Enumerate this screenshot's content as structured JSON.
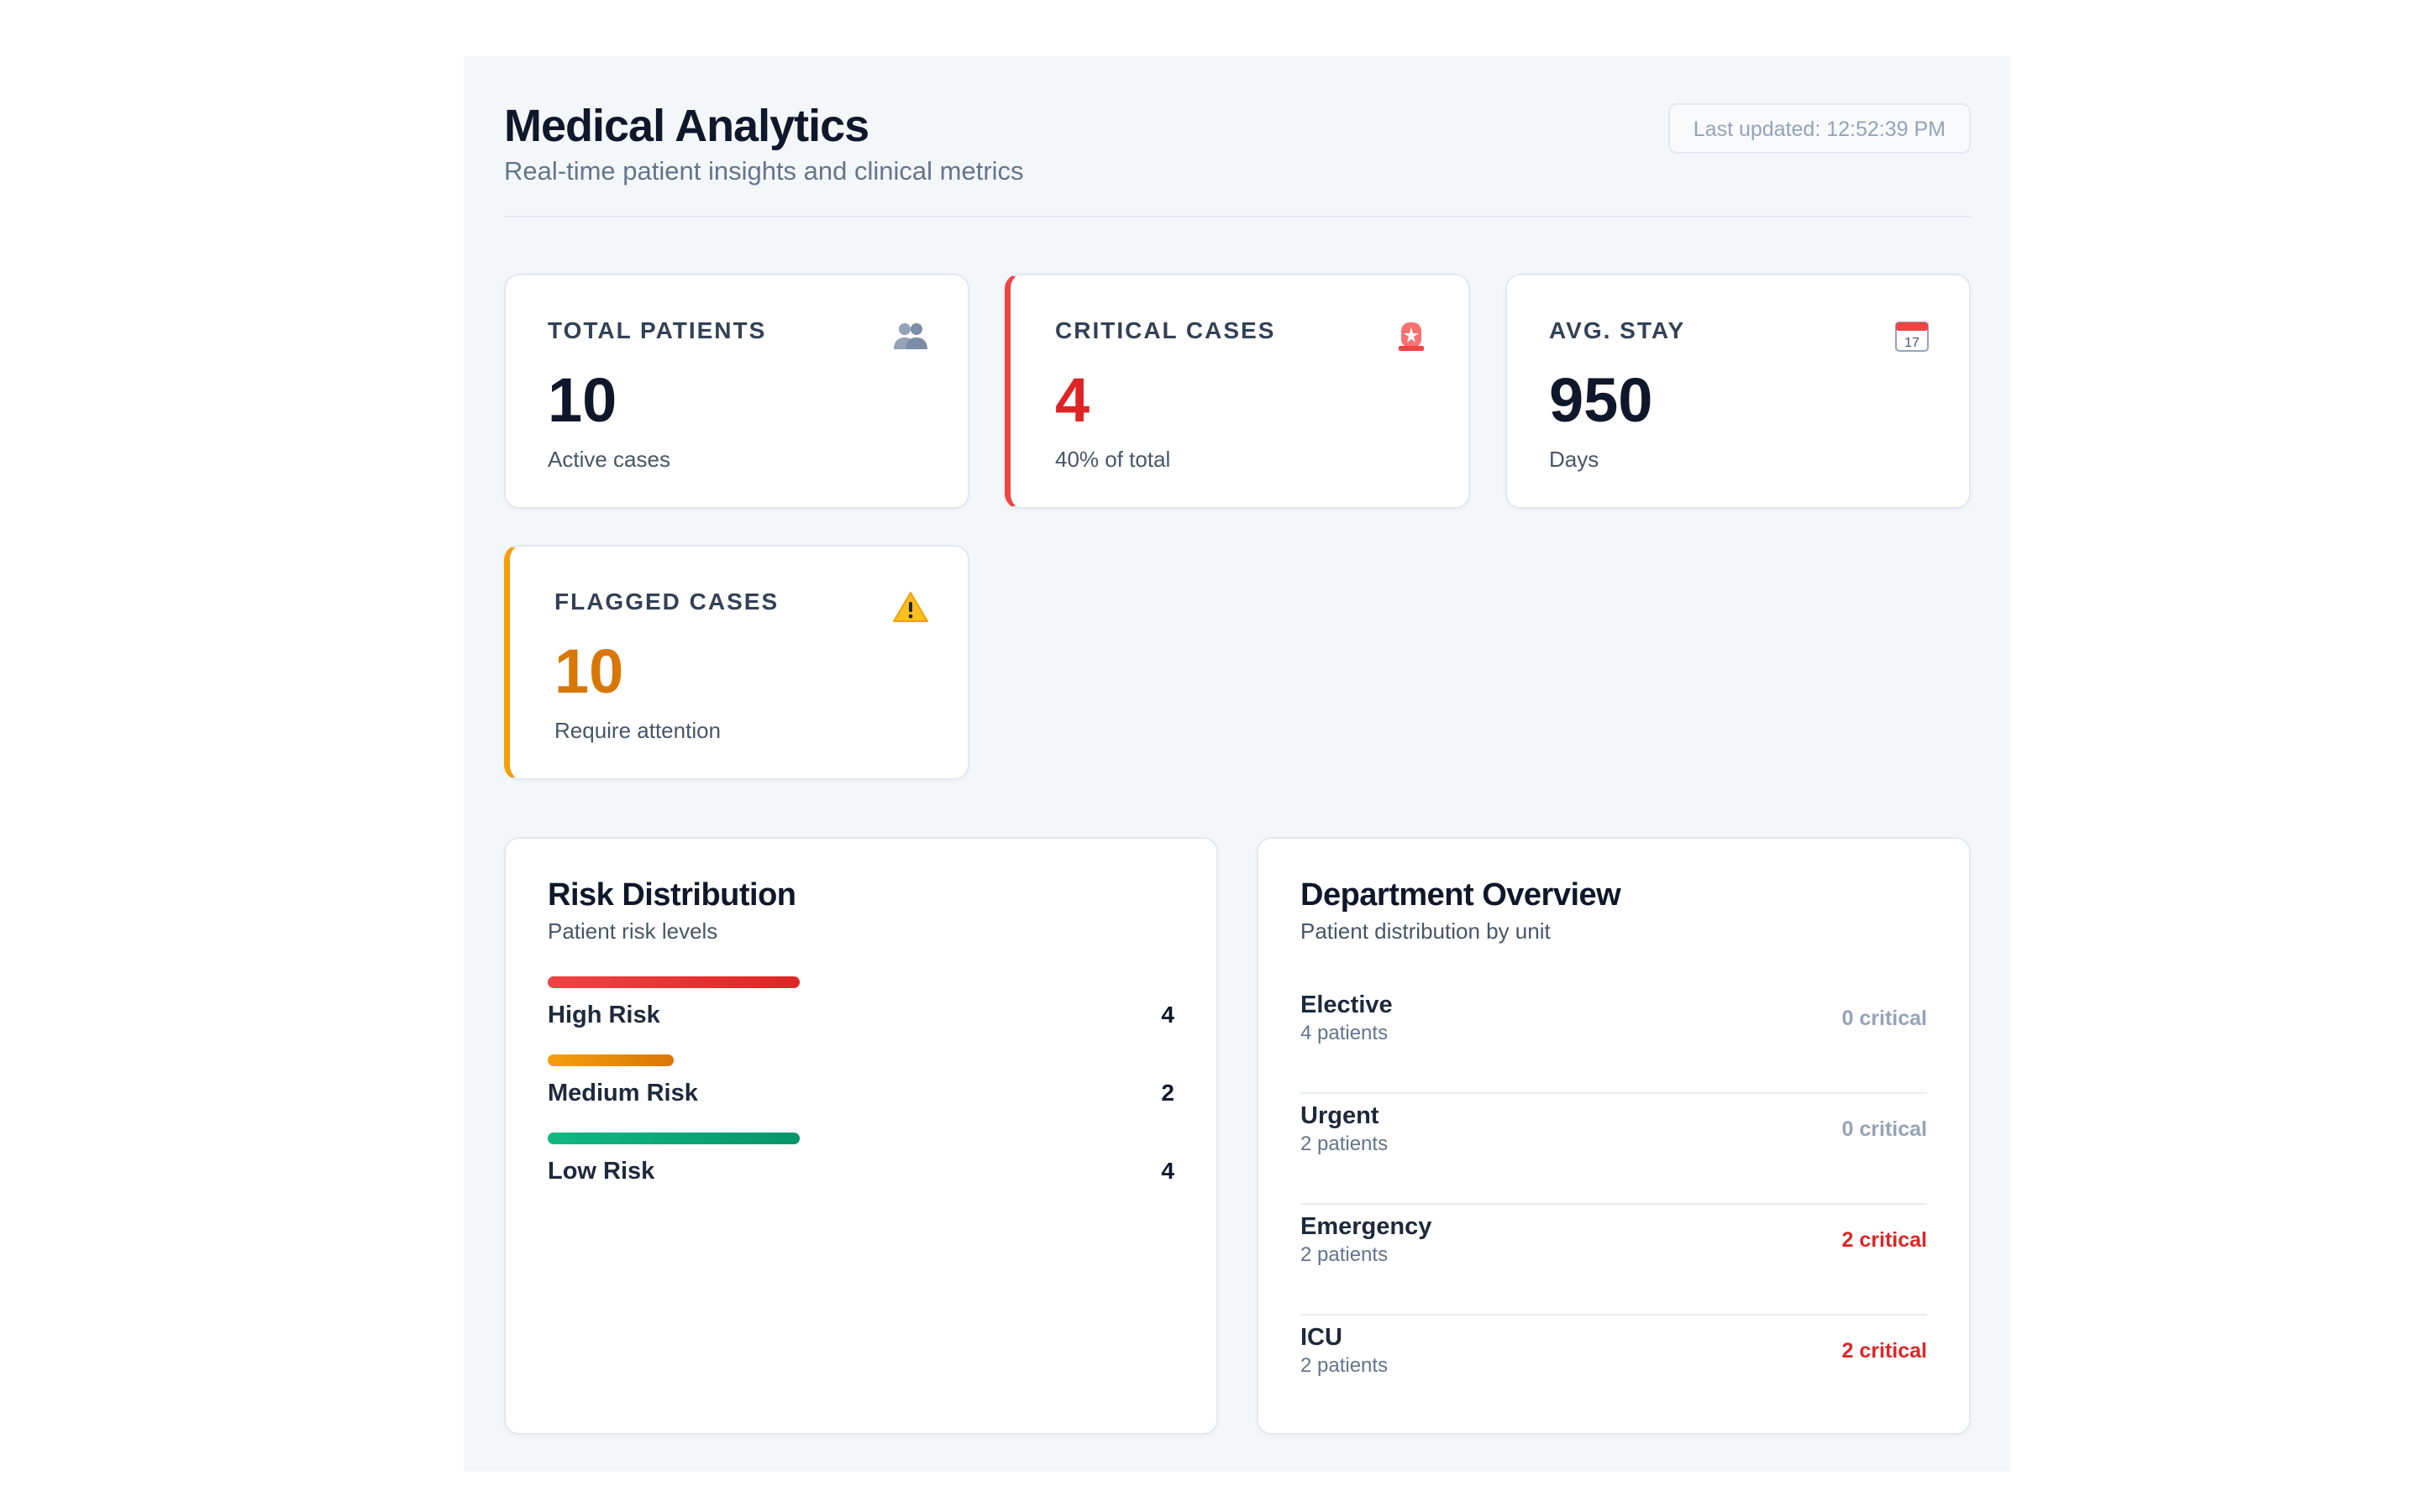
{
  "header": {
    "title": "Medical Analytics",
    "subtitle": "Real-time patient insights and clinical metrics",
    "last_updated": "Last updated: 12:52:39 PM"
  },
  "stats": [
    {
      "label": "TOTAL PATIENTS",
      "value": "10",
      "caption": "Active cases",
      "icon": "users-icon"
    },
    {
      "label": "CRITICAL CASES",
      "value": "4",
      "caption": "40% of total",
      "icon": "siren-icon",
      "accent": "#ef4444"
    },
    {
      "label": "AVG. STAY",
      "value": "950",
      "caption": "Days",
      "icon": "calendar-icon",
      "icon_text": "17"
    },
    {
      "label": "FLAGGED CASES",
      "value": "10",
      "caption": "Require attention",
      "icon": "warning-icon",
      "accent": "#f59e0b"
    }
  ],
  "risk": {
    "title": "Risk Distribution",
    "subtitle": "Patient risk levels",
    "items": [
      {
        "label": "High Risk",
        "count": "4",
        "fraction": 0.4,
        "color_from": "#ef4444",
        "color_to": "#dc2626"
      },
      {
        "label": "Medium Risk",
        "count": "2",
        "fraction": 0.2,
        "color_from": "#f59e0b",
        "color_to": "#d97706"
      },
      {
        "label": "Low Risk",
        "count": "4",
        "fraction": 0.4,
        "color_from": "#10b981",
        "color_to": "#059669"
      }
    ]
  },
  "departments": {
    "title": "Department Overview",
    "subtitle": "Patient distribution by unit",
    "items": [
      {
        "name": "Elective",
        "patients": "4 patients",
        "critical": "0 critical",
        "hot": false
      },
      {
        "name": "Urgent",
        "patients": "2 patients",
        "critical": "0 critical",
        "hot": false
      },
      {
        "name": "Emergency",
        "patients": "2 patients",
        "critical": "2 critical",
        "hot": true
      },
      {
        "name": "ICU",
        "patients": "2 patients",
        "critical": "2 critical",
        "hot": true
      }
    ]
  }
}
